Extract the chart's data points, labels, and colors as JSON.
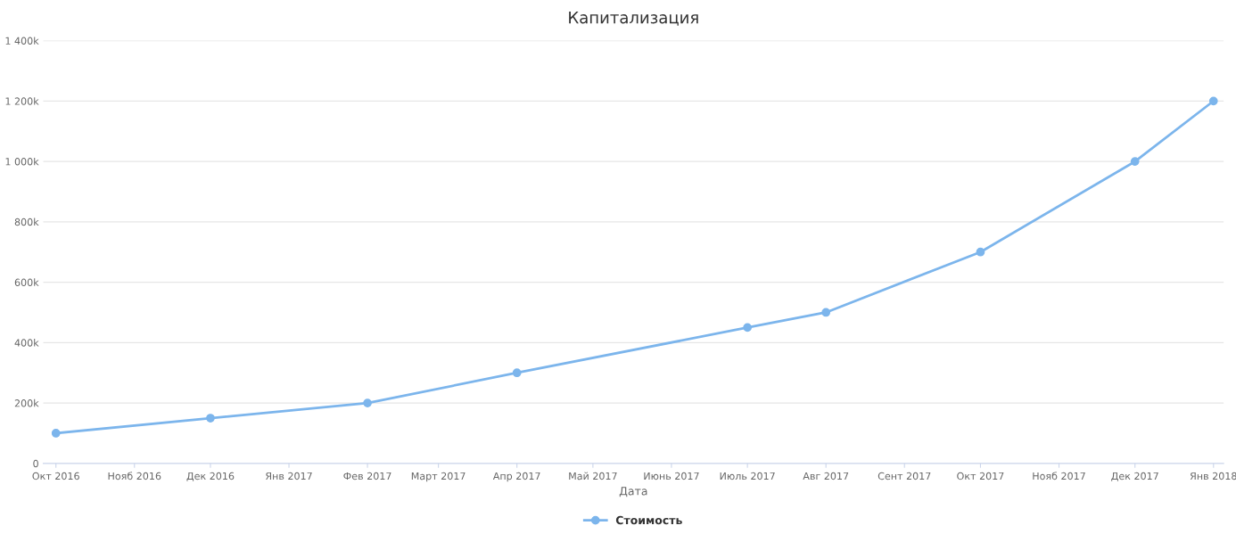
{
  "chart_data": {
    "type": "line",
    "title": "Капитализация",
    "xlabel": "Дата",
    "x": [
      "2016-10-01",
      "2016-12-01",
      "2017-02-01",
      "2017-04-01",
      "2017-07-01",
      "2017-08-01",
      "2017-10-01",
      "2017-12-01",
      "2018-01-01"
    ],
    "series": [
      {
        "name": "Стоимость",
        "color": "#7cb5ec",
        "values": [
          100000,
          150000,
          200000,
          300000,
          450000,
          500000,
          700000,
          1000000,
          1200000
        ]
      }
    ],
    "xlim": [
      "2016-09-26",
      "2018-01-05"
    ],
    "xticks": [
      {
        "value": "2016-10-01",
        "label": "Окт 2016"
      },
      {
        "value": "2016-11-01",
        "label": "Нояб 2016"
      },
      {
        "value": "2016-12-01",
        "label": "Дек 2016"
      },
      {
        "value": "2017-01-01",
        "label": "Янв 2017"
      },
      {
        "value": "2017-02-01",
        "label": "Фев 2017"
      },
      {
        "value": "2017-03-01",
        "label": "Март 2017"
      },
      {
        "value": "2017-04-01",
        "label": "Апр 2017"
      },
      {
        "value": "2017-05-01",
        "label": "Май 2017"
      },
      {
        "value": "2017-06-01",
        "label": "Июнь 2017"
      },
      {
        "value": "2017-07-01",
        "label": "Июль 2017"
      },
      {
        "value": "2017-08-01",
        "label": "Авг 2017"
      },
      {
        "value": "2017-09-01",
        "label": "Сент 2017"
      },
      {
        "value": "2017-10-01",
        "label": "Окт 2017"
      },
      {
        "value": "2017-11-01",
        "label": "Нояб 2017"
      },
      {
        "value": "2017-12-01",
        "label": "Дек 2017"
      },
      {
        "value": "2018-01-01",
        "label": "Янв 2018"
      }
    ],
    "ylim": [
      0,
      1400000
    ],
    "yticks": [
      0,
      {
        "value": 200000,
        "label": "200k"
      },
      {
        "value": 400000,
        "label": "400k"
      },
      {
        "value": 600000,
        "label": "600k"
      },
      {
        "value": 800000,
        "label": "800k"
      },
      {
        "value": 1000000,
        "label": "1 000k"
      },
      {
        "value": 1200000,
        "label": "1 200k"
      },
      {
        "value": 1400000,
        "label": "1 400k"
      }
    ],
    "grid": "y",
    "legend": "bottom",
    "marker": "circle",
    "line_style": "solid"
  }
}
